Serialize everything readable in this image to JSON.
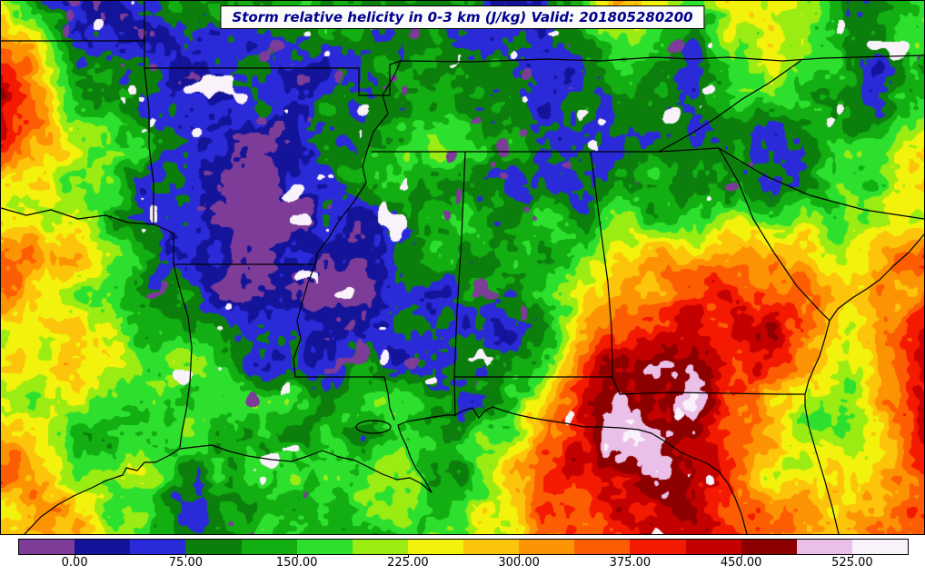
{
  "header": {
    "title": "Storm relative helicity in 0-3 km (J/kg) Valid: 201805280200",
    "valid_time": "201805280200"
  },
  "colorbar": {
    "tick_labels": [
      "0.00",
      "75.00",
      "150.00",
      "225.00",
      "300.00",
      "375.00",
      "450.00",
      "525.00"
    ],
    "tick_values": [
      0,
      75,
      150,
      225,
      300,
      375,
      450,
      525
    ],
    "domain": [
      -37.5,
      562.5
    ],
    "segment_colors": [
      "#7d3c98",
      "#14149b",
      "#2a2ad8",
      "#0c7e0c",
      "#12ae12",
      "#2ee02e",
      "#9aec12",
      "#f2f20c",
      "#fcc40a",
      "#fc9303",
      "#fc5d03",
      "#f41a02",
      "#c40101",
      "#8c0000",
      "#eac0e8",
      "#faf2fa"
    ]
  },
  "colors": {
    "title_text": "#00008b",
    "map_frame": "#000000",
    "state_border": "#000000",
    "background": "#ffffff"
  }
}
